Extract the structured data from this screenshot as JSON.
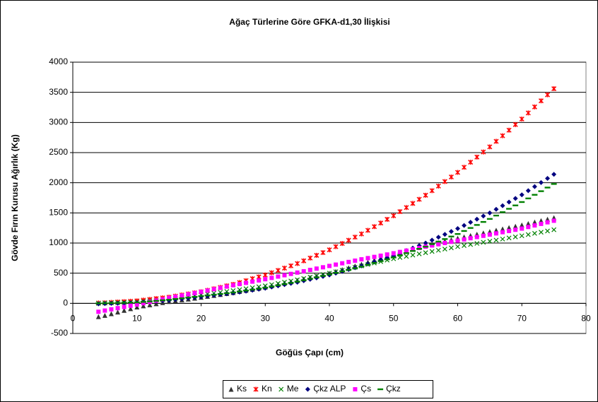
{
  "chart_data": {
    "type": "scatter",
    "title": "Ağaç Türlerine Göre GFKA-d1,30 İlişkisi",
    "x_label": "Göğüs Çapı  (cm)",
    "y_label": "Gövde Fırın Kurusu Ağırlık (Kg)",
    "xlim": [
      0,
      80
    ],
    "xticks": [
      0,
      10,
      20,
      30,
      40,
      50,
      60,
      70,
      80
    ],
    "ylim": [
      -500,
      4000
    ],
    "yticks": [
      -500,
      0,
      500,
      1000,
      1500,
      2000,
      2500,
      3000,
      3500,
      4000
    ],
    "grid": true,
    "legend": "bottom",
    "x": [
      4,
      5,
      6,
      7,
      8,
      9,
      10,
      11,
      12,
      13,
      14,
      15,
      16,
      17,
      18,
      19,
      20,
      21,
      22,
      23,
      24,
      25,
      26,
      27,
      28,
      29,
      30,
      31,
      32,
      33,
      34,
      35,
      36,
      37,
      38,
      39,
      40,
      41,
      42,
      43,
      44,
      45,
      46,
      47,
      48,
      49,
      50,
      51,
      52,
      53,
      54,
      55,
      56,
      57,
      58,
      59,
      60,
      61,
      62,
      63,
      64,
      65,
      66,
      67,
      68,
      69,
      70,
      71,
      72,
      73,
      74,
      75
    ],
    "series": [
      {
        "name": "Ks",
        "color": "#333333",
        "marker": "triangle",
        "values": [
          -220,
          -200,
          -172,
          -144,
          -116,
          -88,
          -60,
          -42,
          -24,
          -6,
          12,
          30,
          44,
          58,
          72,
          86,
          100,
          116,
          132,
          148,
          164,
          180,
          198,
          216,
          234,
          252,
          270,
          292,
          314,
          336,
          358,
          380,
          404,
          428,
          452,
          476,
          500,
          530,
          560,
          590,
          620,
          650,
          684,
          718,
          752,
          786,
          820,
          848,
          876,
          904,
          932,
          960,
          984,
          1008,
          1032,
          1056,
          1080,
          1102,
          1124,
          1146,
          1168,
          1190,
          1212,
          1234,
          1256,
          1278,
          1300,
          1324,
          1348,
          1372,
          1396,
          1420
        ]
      },
      {
        "name": "Kn",
        "color": "#ff0000",
        "marker": "star",
        "values": [
          5,
          9,
          15,
          22,
          28,
          35,
          41,
          53,
          65,
          78,
          90,
          102,
          120,
          138,
          156,
          174,
          192,
          216,
          241,
          265,
          290,
          314,
          345,
          376,
          408,
          439,
          470,
          508,
          546,
          584,
          622,
          660,
          705,
          751,
          796,
          842,
          887,
          940,
          993,
          1046,
          1098,
          1151,
          1211,
          1272,
          1332,
          1393,
          1453,
          1521,
          1589,
          1657,
          1725,
          1793,
          1869,
          1945,
          2020,
          2096,
          2172,
          2257,
          2341,
          2426,
          2510,
          2595,
          2687,
          2780,
          2872,
          2965,
          3057,
          3158,
          3258,
          3359,
          3459,
          3560
        ]
      },
      {
        "name": "Me",
        "color": "#008000",
        "marker": "cross",
        "values": [
          0,
          5,
          8,
          11,
          14,
          17,
          20,
          30,
          40,
          50,
          60,
          70,
          84,
          98,
          112,
          126,
          140,
          154,
          168,
          182,
          196,
          210,
          226,
          242,
          258,
          274,
          290,
          310,
          330,
          350,
          370,
          390,
          412,
          434,
          456,
          478,
          500,
          524,
          548,
          572,
          596,
          620,
          644,
          668,
          692,
          716,
          740,
          760,
          780,
          800,
          820,
          840,
          860,
          880,
          900,
          920,
          940,
          958,
          976,
          994,
          1012,
          1030,
          1048,
          1066,
          1084,
          1102,
          1120,
          1140,
          1160,
          1180,
          1200,
          1220
        ]
      },
      {
        "name": "Çkz ALP",
        "color": "#000080",
        "marker": "diamond",
        "values": [
          -10,
          -5,
          -2,
          1,
          4,
          7,
          10,
          18,
          26,
          34,
          42,
          50,
          62,
          74,
          86,
          98,
          110,
          122,
          134,
          146,
          158,
          170,
          186,
          202,
          218,
          234,
          250,
          270,
          290,
          310,
          330,
          350,
          374,
          398,
          422,
          446,
          470,
          500,
          530,
          560,
          590,
          620,
          654,
          688,
          722,
          756,
          790,
          832,
          874,
          916,
          958,
          1000,
          1048,
          1096,
          1144,
          1192,
          1240,
          1292,
          1344,
          1396,
          1448,
          1500,
          1560,
          1620,
          1680,
          1740,
          1800,
          1868,
          1936,
          2004,
          2072,
          2140
        ]
      },
      {
        "name": "Çs",
        "color": "#ff00ff",
        "marker": "square",
        "values": [
          -140,
          -120,
          -100,
          -80,
          -60,
          -40,
          -20,
          2,
          24,
          46,
          68,
          90,
          110,
          130,
          150,
          170,
          190,
          212,
          234,
          256,
          278,
          300,
          320,
          340,
          360,
          380,
          400,
          422,
          444,
          466,
          488,
          510,
          532,
          554,
          576,
          598,
          620,
          642,
          664,
          686,
          708,
          730,
          750,
          770,
          790,
          810,
          830,
          852,
          874,
          896,
          918,
          940,
          960,
          980,
          1000,
          1020,
          1040,
          1060,
          1080,
          1100,
          1120,
          1140,
          1160,
          1180,
          1200,
          1220,
          1240,
          1266,
          1292,
          1318,
          1344,
          1370
        ]
      },
      {
        "name": "Çkz",
        "color": "#008000",
        "marker": "dash",
        "values": [
          0,
          2,
          5,
          7,
          10,
          12,
          15,
          24,
          33,
          42,
          51,
          60,
          72,
          84,
          96,
          108,
          120,
          132,
          144,
          156,
          168,
          180,
          196,
          212,
          228,
          244,
          260,
          280,
          300,
          320,
          340,
          360,
          384,
          408,
          432,
          456,
          480,
          506,
          532,
          558,
          584,
          610,
          640,
          670,
          700,
          730,
          760,
          796,
          832,
          868,
          904,
          940,
          982,
          1024,
          1066,
          1108,
          1150,
          1200,
          1250,
          1300,
          1350,
          1400,
          1456,
          1512,
          1568,
          1624,
          1680,
          1740,
          1800,
          1860,
          1920,
          1980
        ]
      }
    ]
  }
}
